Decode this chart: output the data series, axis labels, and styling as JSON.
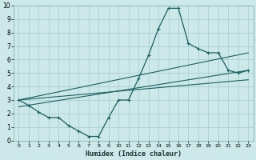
{
  "xlabel": "Humidex (Indice chaleur)",
  "bg_color": "#cce8e8",
  "grid_color": "#aacfcf",
  "line_color": "#1a6060",
  "xlim": [
    -0.5,
    23.5
  ],
  "ylim": [
    0,
    10
  ],
  "xticks": [
    0,
    1,
    2,
    3,
    4,
    5,
    6,
    7,
    8,
    9,
    10,
    11,
    12,
    13,
    14,
    15,
    16,
    17,
    18,
    19,
    20,
    21,
    22,
    23
  ],
  "yticks": [
    0,
    1,
    2,
    3,
    4,
    5,
    6,
    7,
    8,
    9,
    10
  ],
  "line1_x": [
    0,
    1,
    2,
    3,
    4,
    5,
    6,
    7,
    8,
    9,
    10,
    11,
    12,
    13,
    14,
    15,
    16,
    17,
    18,
    19,
    20,
    21,
    22,
    23
  ],
  "line1_y": [
    3.0,
    2.6,
    2.1,
    1.7,
    1.7,
    1.1,
    0.7,
    0.3,
    0.3,
    1.7,
    3.0,
    3.0,
    4.6,
    6.3,
    8.3,
    9.8,
    9.8,
    7.2,
    6.8,
    6.5,
    6.5,
    5.2,
    5.0,
    5.2
  ],
  "line2_x": [
    0,
    23
  ],
  "line2_y": [
    3.0,
    6.5
  ],
  "line3_x": [
    0,
    23
  ],
  "line3_y": [
    2.5,
    5.2
  ],
  "line4_x": [
    0,
    23
  ],
  "line4_y": [
    3.0,
    4.5
  ]
}
